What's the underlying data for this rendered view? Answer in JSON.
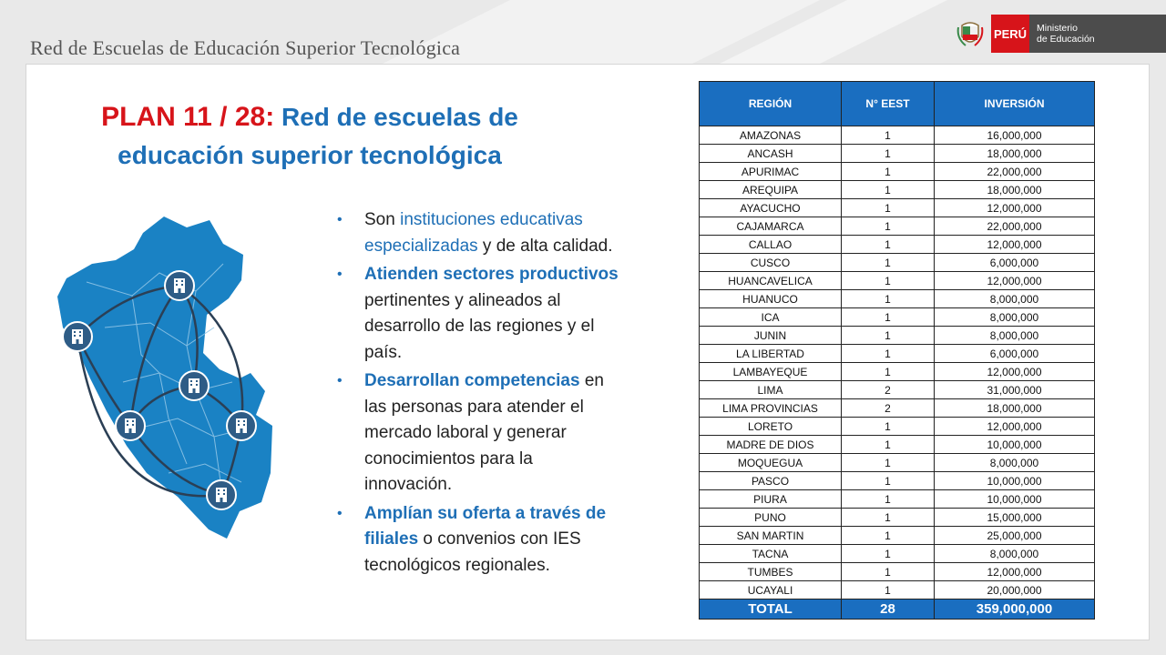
{
  "header": {
    "title": "Red de Escuelas de Educación Superior Tecnológica",
    "logo": {
      "country": "PERÚ",
      "ministry_line1": "Ministerio",
      "ministry_line2": "de Educación"
    }
  },
  "plan": {
    "label": "PLAN 11 / 28:",
    "title_line1": "Red de escuelas de",
    "title_line2": "educación superior tecnológica"
  },
  "bullets": [
    {
      "pre": "Son ",
      "hl": "instituciones educativas especializadas",
      "post": " y de alta calidad."
    },
    {
      "pre": "",
      "hl": "Atienden sectores productivos",
      "post": " pertinentes y alineados al desarrollo de las regiones y el país."
    },
    {
      "pre": "",
      "hl": "Desarrollan competencias",
      "post": " en las personas para atender el mercado laboral y generar conocimientos para la innovación."
    },
    {
      "pre": "",
      "hl": "Amplían su oferta a través de filiales",
      "post": " o convenios con IES tecnológicos regionales."
    }
  ],
  "table": {
    "headers": [
      "REGIÓN",
      "N° EEST",
      "INVERSIÓN"
    ],
    "rows": [
      [
        "AMAZONAS",
        "1",
        "16,000,000"
      ],
      [
        "ANCASH",
        "1",
        "18,000,000"
      ],
      [
        "APURIMAC",
        "1",
        "22,000,000"
      ],
      [
        "AREQUIPA",
        "1",
        "18,000,000"
      ],
      [
        "AYACUCHO",
        "1",
        "12,000,000"
      ],
      [
        "CAJAMARCA",
        "1",
        "22,000,000"
      ],
      [
        "CALLAO",
        "1",
        "12,000,000"
      ],
      [
        "CUSCO",
        "1",
        "6,000,000"
      ],
      [
        "HUANCAVELICA",
        "1",
        "12,000,000"
      ],
      [
        "HUANUCO",
        "1",
        "8,000,000"
      ],
      [
        "ICA",
        "1",
        "8,000,000"
      ],
      [
        "JUNIN",
        "1",
        "8,000,000"
      ],
      [
        "LA LIBERTAD",
        "1",
        "6,000,000"
      ],
      [
        "LAMBAYEQUE",
        "1",
        "12,000,000"
      ],
      [
        "LIMA",
        "2",
        "31,000,000"
      ],
      [
        "LIMA PROVINCIAS",
        "2",
        "18,000,000"
      ],
      [
        "LORETO",
        "1",
        "12,000,000"
      ],
      [
        "MADRE DE DIOS",
        "1",
        "10,000,000"
      ],
      [
        "MOQUEGUA",
        "1",
        "8,000,000"
      ],
      [
        "PASCO",
        "1",
        "10,000,000"
      ],
      [
        "PIURA",
        "1",
        "10,000,000"
      ],
      [
        "PUNO",
        "1",
        "15,000,000"
      ],
      [
        "SAN MARTIN",
        "1",
        "25,000,000"
      ],
      [
        "TACNA",
        "1",
        "8,000,000"
      ],
      [
        "TUMBES",
        "1",
        "12,000,000"
      ],
      [
        "UCAYALI",
        "1",
        "20,000,000"
      ]
    ],
    "total": [
      "TOTAL",
      "28",
      "359,000,000"
    ]
  },
  "map": {
    "icon": "school-building-icon",
    "color": "#1a82c4"
  }
}
